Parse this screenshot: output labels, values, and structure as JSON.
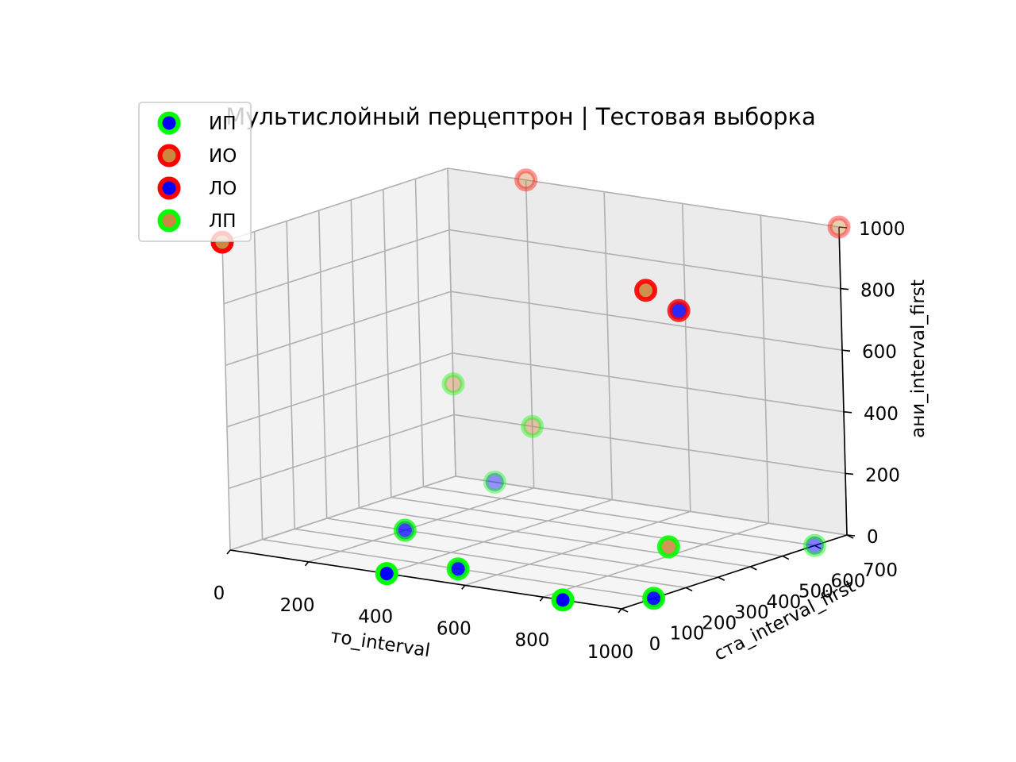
{
  "chart_data": {
    "type": "scatter",
    "projection": "3d",
    "title": "Мультислойный перцептрон | Тестовая выборка",
    "xlabel": "то_interval",
    "ylabel": "ста_interval_first",
    "zlabel": "ани_interval_first",
    "x_ticks": [
      "0",
      "200",
      "400",
      "600",
      "800",
      "1000"
    ],
    "y_ticks": [
      "0",
      "100",
      "200",
      "300",
      "400",
      "500",
      "600",
      "700"
    ],
    "z_ticks": [
      "0",
      "200",
      "400",
      "600",
      "800",
      "1000"
    ],
    "xlim": [
      0,
      1000
    ],
    "ylim": [
      0,
      700
    ],
    "zlim": [
      0,
      1000
    ],
    "grid": true,
    "legend_position": "top-left",
    "series": [
      {
        "name": "ИП",
        "edge_color": "#00ff00",
        "face_color": "#0000ff",
        "points": [
          [
            100,
            700,
            0
          ],
          [
            200,
            300,
            0
          ],
          [
            400,
            0,
            0
          ],
          [
            500,
            100,
            0
          ],
          [
            850,
            0,
            0
          ],
          [
            1000,
            100,
            0
          ],
          [
            1000,
            600,
            0
          ]
        ]
      },
      {
        "name": "ИО",
        "edge_color": "#ff0000",
        "face_color": "#cd853f",
        "points": [
          [
            0,
            0,
            1000
          ],
          [
            1000,
            700,
            1000
          ],
          [
            1000,
            100,
            1000
          ],
          [
            200,
            700,
            1000
          ]
        ]
      },
      {
        "name": "ЛО",
        "edge_color": "#ff0000",
        "face_color": "#0000ff",
        "points": [
          [
            1000,
            200,
            900
          ]
        ]
      },
      {
        "name": "ЛП",
        "edge_color": "#00ff00",
        "face_color": "#cd853f",
        "points": [
          [
            1000,
            150,
            150
          ],
          [
            200,
            700,
            200
          ],
          [
            0,
            700,
            300
          ]
        ]
      }
    ]
  }
}
